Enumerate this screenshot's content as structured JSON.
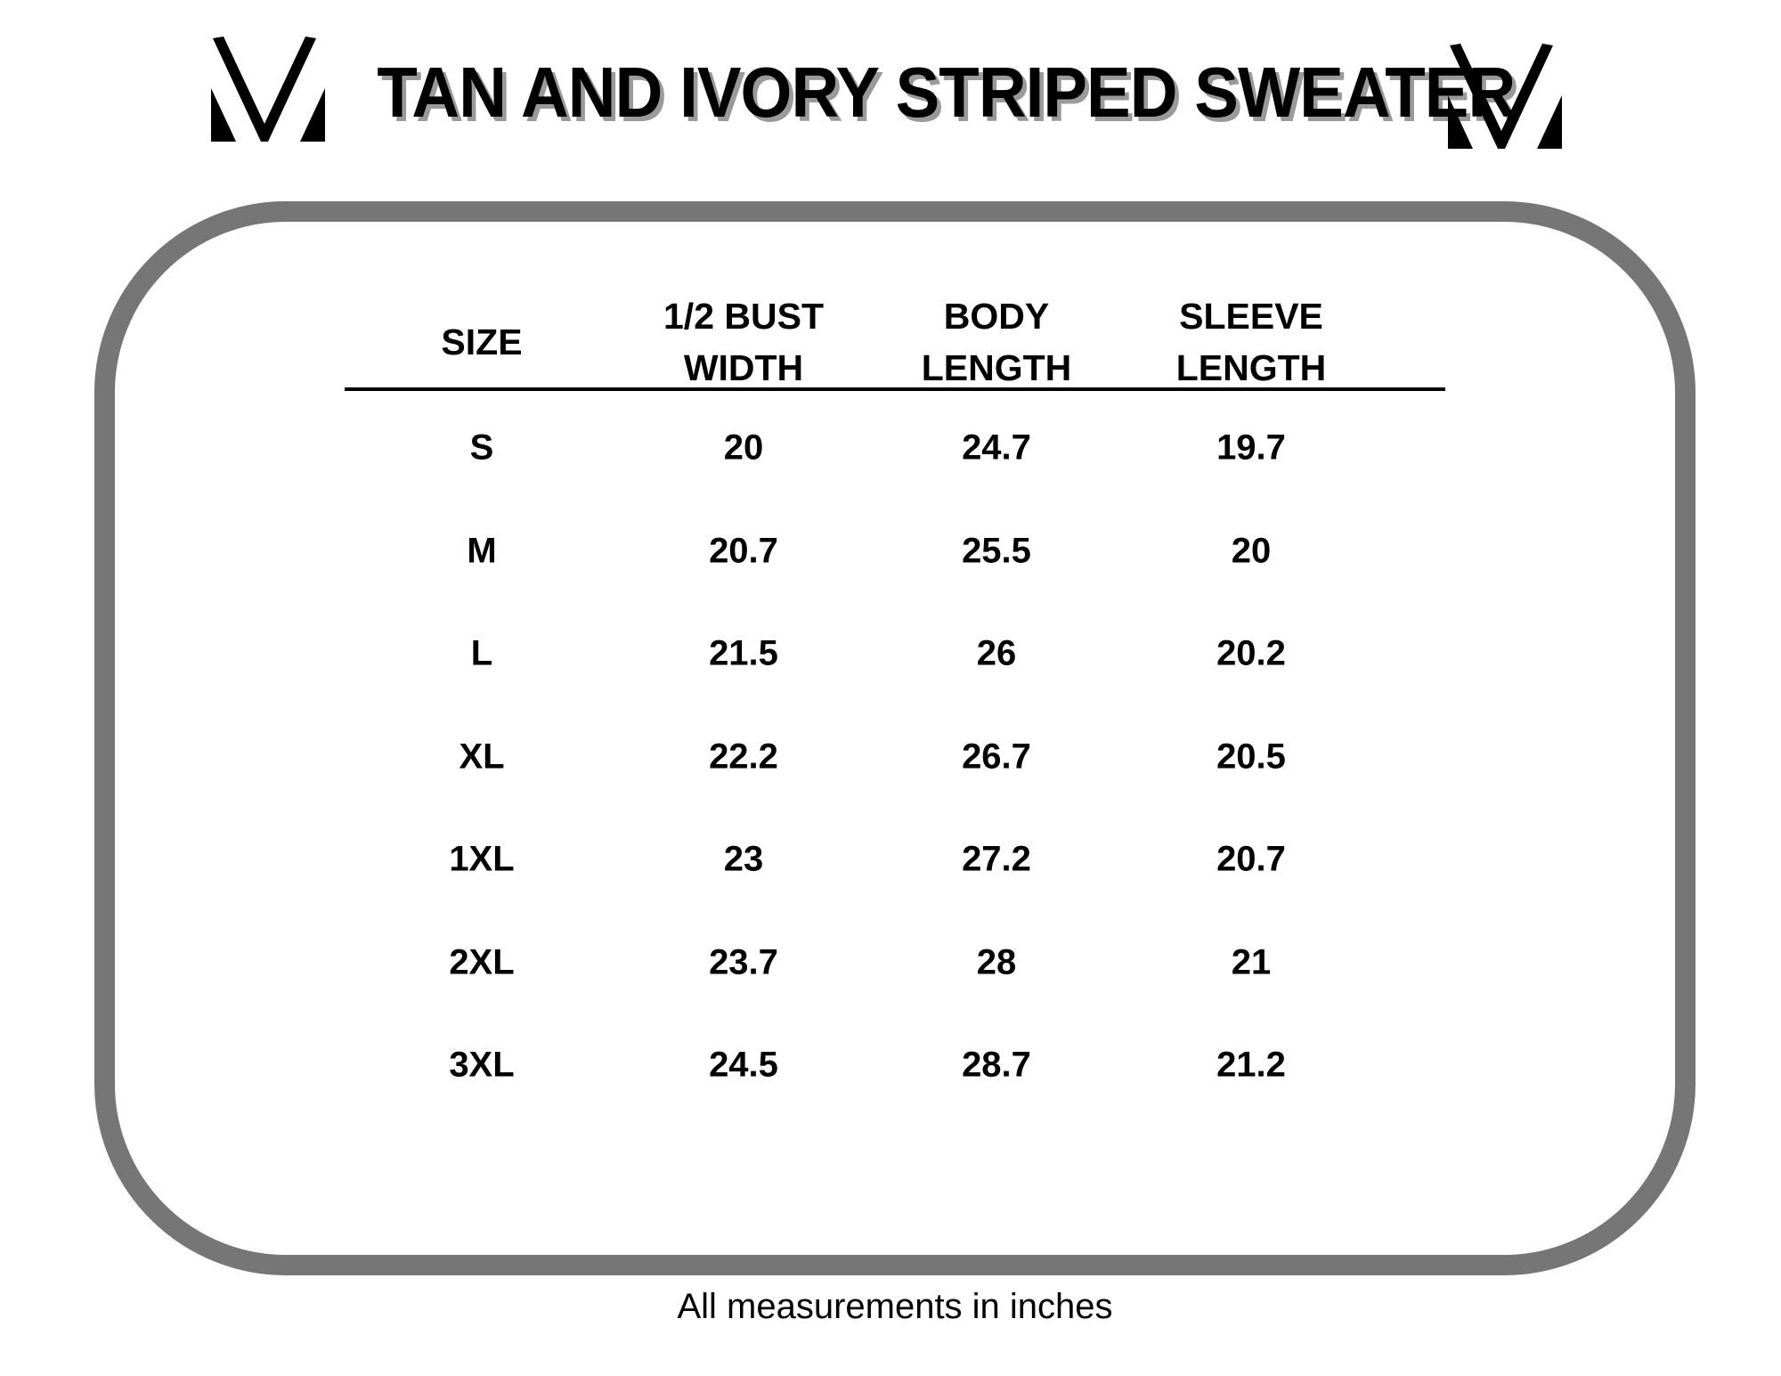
{
  "title": "TAN AND IVORY STRIPED SWEATER",
  "logo": "chevron-m-logo",
  "table": {
    "headers": [
      {
        "line1": "",
        "line2": "SIZE"
      },
      {
        "line1": "1/2 BUST",
        "line2": "WIDTH"
      },
      {
        "line1": "BODY",
        "line2": "LENGTH"
      },
      {
        "line1": "SLEEVE",
        "line2": "LENGTH"
      }
    ],
    "rows": [
      [
        "S",
        "20",
        "24.7",
        "19.7"
      ],
      [
        "M",
        "20.7",
        "25.5",
        "20"
      ],
      [
        "L",
        "21.5",
        "26",
        "20.2"
      ],
      [
        "XL",
        "22.2",
        "26.7",
        "20.5"
      ],
      [
        "1XL",
        "23",
        "27.2",
        "20.7"
      ],
      [
        "2XL",
        "23.7",
        "28",
        "21"
      ],
      [
        "3XL",
        "24.5",
        "28.7",
        "21.2"
      ]
    ]
  },
  "footer": "All measurements in inches",
  "colors": {
    "frame": "#767676",
    "title_shadow": "#9a9a9a"
  }
}
